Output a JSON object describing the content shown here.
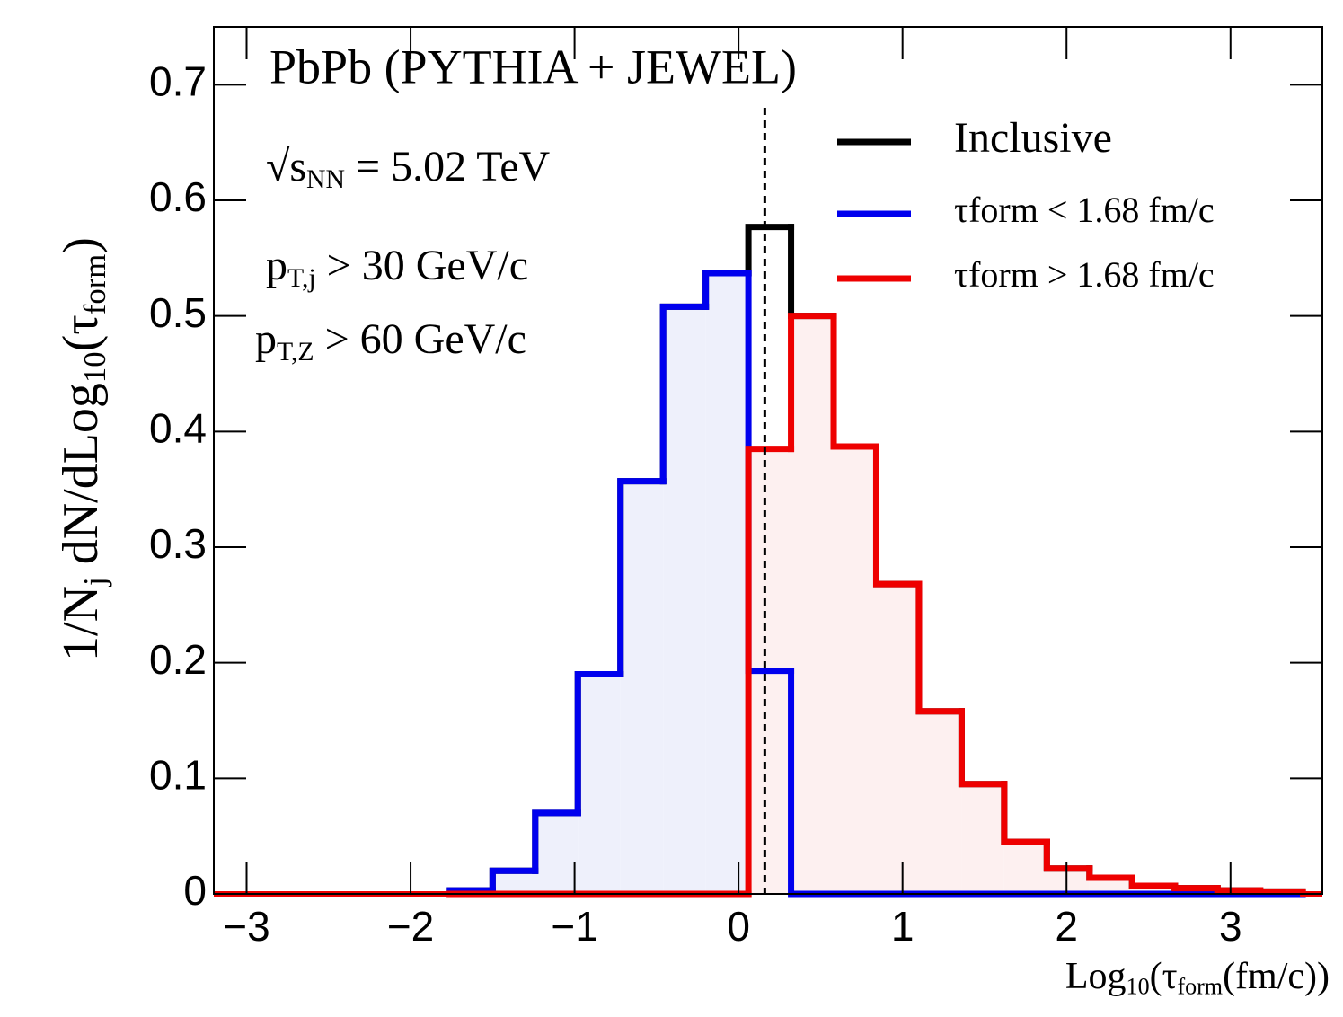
{
  "chart_data": {
    "type": "histogram",
    "title": "PbPb (PYTHIA + JEWEL)",
    "annotations": [
      {
        "parts": [
          "√s",
          "NN",
          " = 5.02 TeV"
        ]
      },
      {
        "parts": [
          "p",
          "T,j",
          " > 30 GeV/c"
        ]
      },
      {
        "parts": [
          "p",
          "T,Z",
          " > 60 GeV/c"
        ]
      }
    ],
    "x_label": {
      "parts": [
        "Log",
        "10",
        "(τ",
        "form",
        "(fm/c))"
      ]
    },
    "y_label": {
      "parts": [
        "1/N",
        "j",
        " dN/dLog",
        "10",
        "(τ",
        "form",
        ")"
      ]
    },
    "bins": [
      -1.76,
      -1.5,
      -1.24,
      -0.98,
      -0.72,
      -0.46,
      -0.2,
      0.06,
      0.32,
      0.58,
      0.84,
      1.1,
      1.36,
      1.62,
      1.88,
      2.14,
      2.4,
      2.66,
      2.92,
      3.18,
      3.44
    ],
    "series": [
      {
        "name": "Inclusive",
        "color": "#000000",
        "values": [
          0.003,
          0.02,
          0.07,
          0.19,
          0.357,
          0.508,
          0.537,
          0.577,
          0.5,
          0.387,
          0.268,
          0.158,
          0.095,
          0.045,
          0.022,
          0.014,
          0.007,
          0.005,
          0.003,
          0.002
        ]
      },
      {
        "name": "τform < 1.68 fm/c",
        "color": "#0000ee",
        "fill": "#eef0fb",
        "values": [
          0.003,
          0.02,
          0.07,
          0.19,
          0.357,
          0.508,
          0.537,
          0.193,
          0,
          0,
          0,
          0,
          0,
          0,
          0,
          0,
          0,
          0,
          0,
          0
        ]
      },
      {
        "name": "τform > 1.68 fm/c",
        "color": "#ee0000",
        "fill": "#fdf0f0",
        "values": [
          0,
          0,
          0,
          0,
          0,
          0,
          0,
          0.385,
          0.5,
          0.387,
          0.268,
          0.158,
          0.095,
          0.045,
          0.022,
          0.014,
          0.007,
          0.005,
          0.003,
          0.002
        ]
      }
    ],
    "vline": 0.16,
    "xlim": [
      -3.2,
      3.56
    ],
    "ylim": [
      0,
      0.75
    ],
    "xticks": [
      {
        "value": -3,
        "label": "−3"
      },
      {
        "value": -2,
        "label": "−2"
      },
      {
        "value": -1,
        "label": "−1"
      },
      0,
      1,
      2,
      3
    ],
    "yticks": [
      0,
      0.1,
      0.2,
      0.3,
      0.4,
      0.5,
      0.6,
      0.7
    ]
  }
}
